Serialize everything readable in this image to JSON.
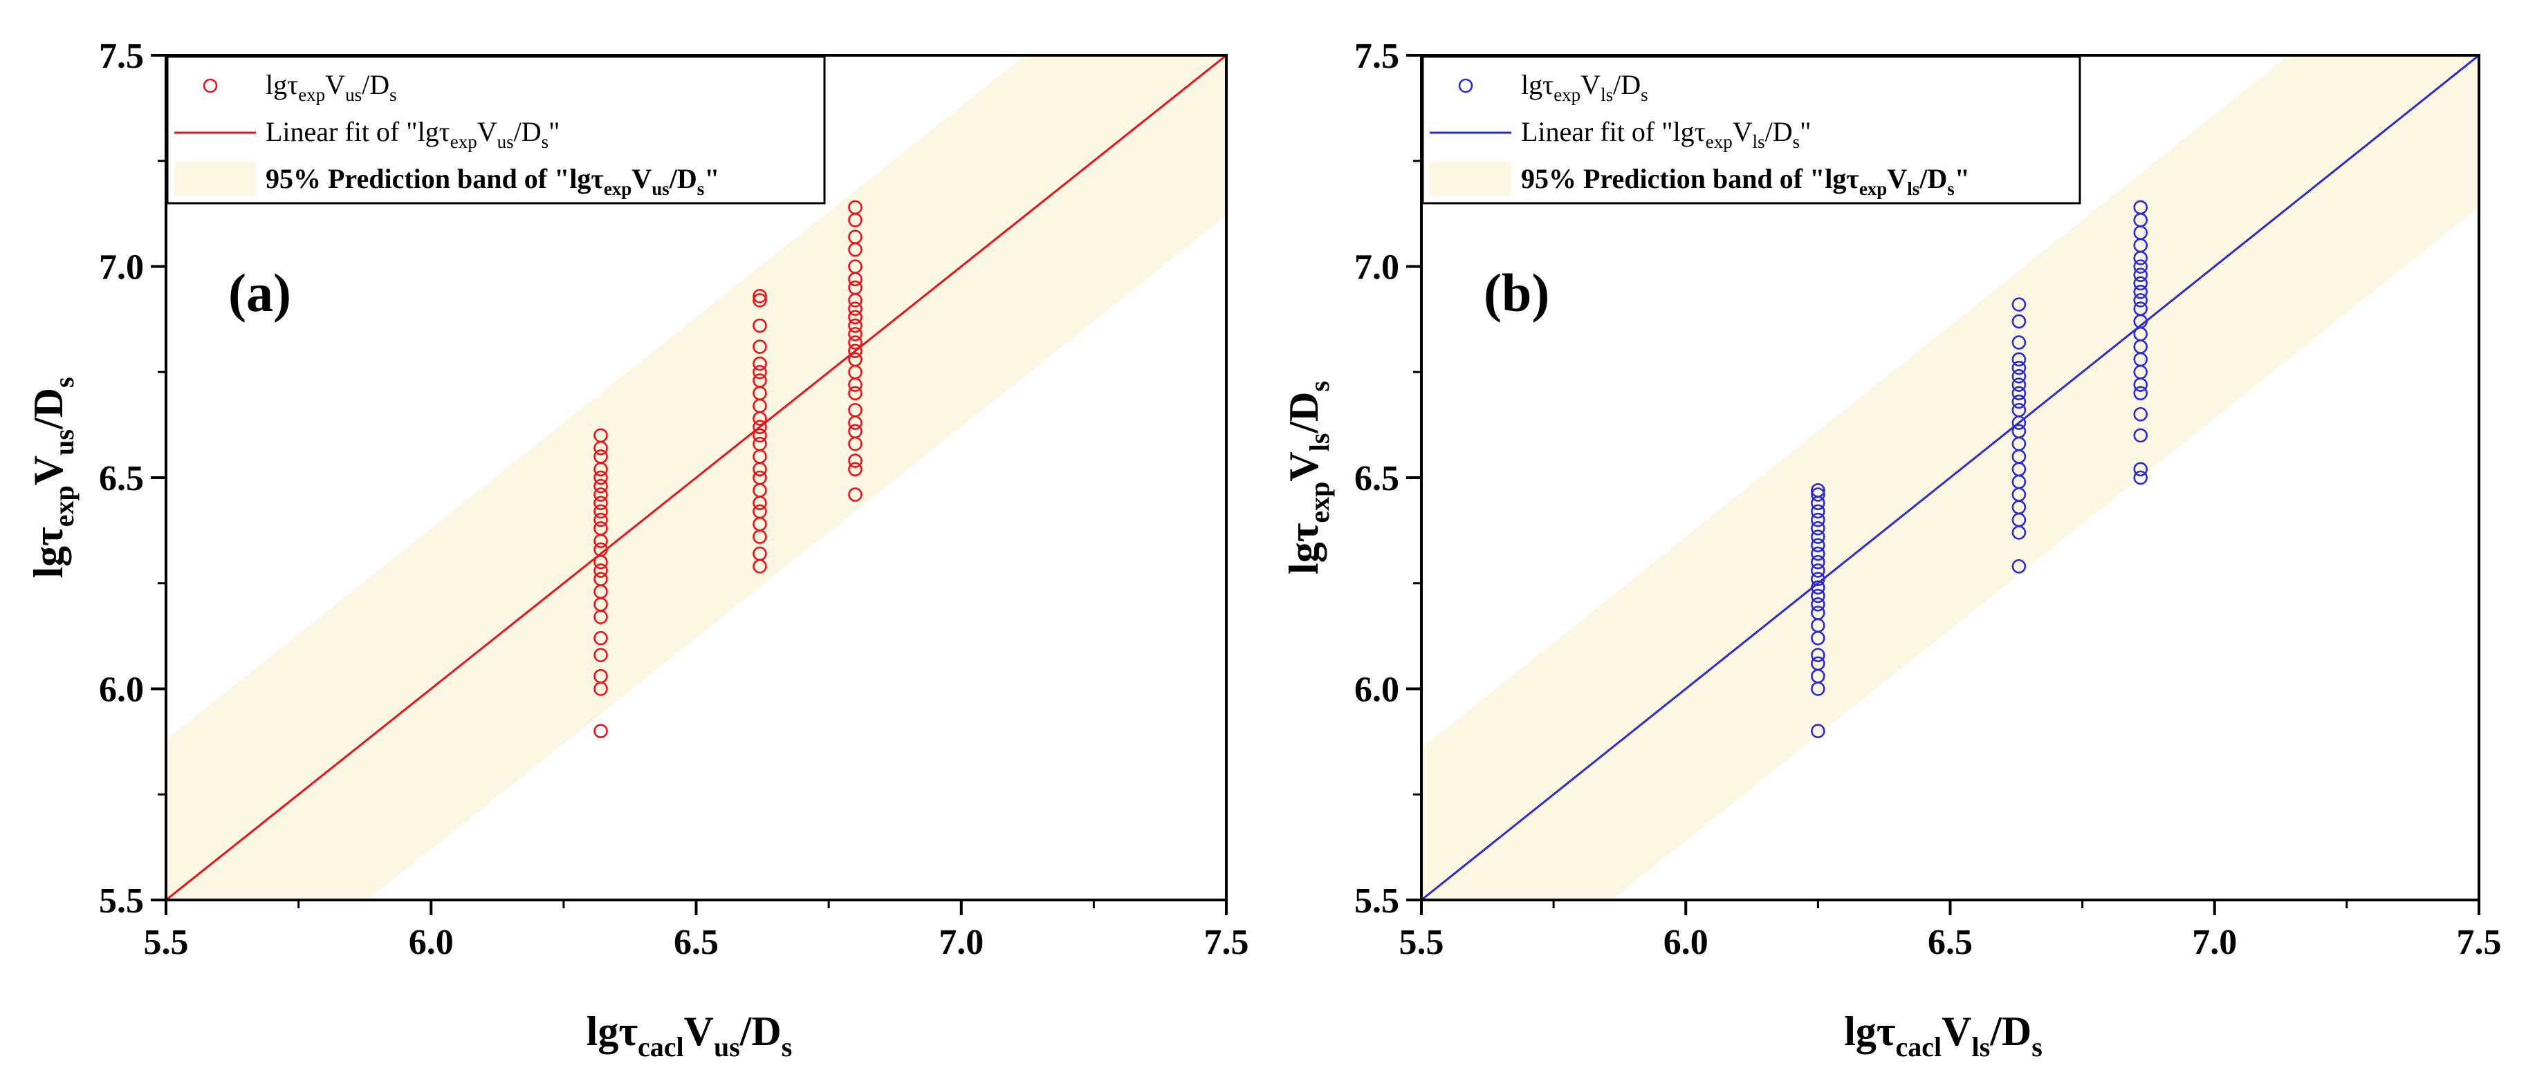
{
  "chart_data": [
    {
      "type": "scatter",
      "panel_label": "(a)",
      "color": "#e8131b",
      "band_color": "#fbf7e2",
      "xlim": [
        5.5,
        7.5
      ],
      "ylim": [
        5.5,
        7.5
      ],
      "x_ticks": [
        "5.5",
        "6.0",
        "6.5",
        "7.0",
        "7.5"
      ],
      "y_ticks": [
        "5.5",
        "6.0",
        "6.5",
        "7.0",
        "7.5"
      ],
      "xlabel": {
        "base": "lgτ",
        "sub1": "cacl",
        "mid": "V",
        "sub2": "us",
        "tail": "/D",
        "sub3": "s"
      },
      "ylabel": {
        "base": "lgτ",
        "sub1": "exp",
        "mid": "V",
        "sub2": "us",
        "tail": "/D",
        "sub3": "s"
      },
      "legend": {
        "scatter": {
          "base": "lgτ",
          "sub1": "exp",
          "mid": "V",
          "sub2": "us",
          "tail": "/D",
          "sub3": "s"
        },
        "fit": {
          "base": "Linear fit of \"lgτ",
          "sub1": "exp",
          "mid": "V",
          "sub2": "us",
          "tail": "/D",
          "sub3": "s",
          "end": "\""
        },
        "band": {
          "base": "95% Prediction band of \"lgτ",
          "sub1": "exp",
          "mid": "V",
          "sub2": "us",
          "tail": "/D",
          "sub3": "s",
          "end": "\""
        }
      },
      "fit_line": [
        [
          5.5,
          5.5
        ],
        [
          7.5,
          7.5
        ]
      ],
      "band_halfwidth": 0.38,
      "series": [
        {
          "x": 6.32,
          "y": [
            5.9,
            6.0,
            6.03,
            6.08,
            6.12,
            6.17,
            6.2,
            6.23,
            6.26,
            6.28,
            6.3,
            6.33,
            6.35,
            6.38,
            6.4,
            6.42,
            6.44,
            6.46,
            6.48,
            6.5,
            6.52,
            6.55,
            6.57,
            6.6
          ]
        },
        {
          "x": 6.62,
          "y": [
            6.29,
            6.32,
            6.36,
            6.39,
            6.42,
            6.44,
            6.47,
            6.5,
            6.52,
            6.55,
            6.58,
            6.6,
            6.62,
            6.64,
            6.67,
            6.7,
            6.73,
            6.75,
            6.77,
            6.81,
            6.86,
            6.92,
            6.93
          ]
        },
        {
          "x": 6.8,
          "y": [
            6.46,
            6.52,
            6.54,
            6.58,
            6.61,
            6.63,
            6.66,
            6.7,
            6.72,
            6.75,
            6.78,
            6.8,
            6.82,
            6.84,
            6.86,
            6.88,
            6.9,
            6.92,
            6.95,
            6.97,
            7.0,
            7.04,
            7.07,
            7.11,
            7.14
          ]
        }
      ]
    },
    {
      "type": "scatter",
      "panel_label": "(b)",
      "color": "#2b2bd6",
      "band_color": "#fbf7e2",
      "xlim": [
        5.5,
        7.5
      ],
      "ylim": [
        5.5,
        7.5
      ],
      "x_ticks": [
        "5.5",
        "6.0",
        "6.5",
        "7.0",
        "7.5"
      ],
      "y_ticks": [
        "5.5",
        "6.0",
        "6.5",
        "7.0",
        "7.5"
      ],
      "xlabel": {
        "base": "lgτ",
        "sub1": "cacl",
        "mid": "V",
        "sub2": "ls",
        "tail": "/D",
        "sub3": "s"
      },
      "ylabel": {
        "base": "lgτ",
        "sub1": "exp",
        "mid": "V",
        "sub2": "ls",
        "tail": "/D",
        "sub3": "s"
      },
      "legend": {
        "scatter": {
          "base": "lgτ",
          "sub1": "exp",
          "mid": "V",
          "sub2": "ls",
          "tail": "/D",
          "sub3": "s"
        },
        "fit": {
          "base": "Linear fit of \"lgτ",
          "sub1": "exp",
          "mid": "V",
          "sub2": "ls",
          "tail": "/D",
          "sub3": "s",
          "end": "\""
        },
        "band": {
          "base": "95% Prediction band of \"lgτ",
          "sub1": "exp",
          "mid": "V",
          "sub2": "ls",
          "tail": "/D",
          "sub3": "s",
          "end": "\""
        }
      },
      "fit_line": [
        [
          5.5,
          5.5
        ],
        [
          7.5,
          7.5
        ]
      ],
      "band_halfwidth": 0.36,
      "series": [
        {
          "x": 6.25,
          "y": [
            5.9,
            6.0,
            6.03,
            6.06,
            6.08,
            6.12,
            6.15,
            6.18,
            6.2,
            6.22,
            6.24,
            6.26,
            6.28,
            6.3,
            6.32,
            6.34,
            6.36,
            6.38,
            6.4,
            6.42,
            6.44,
            6.46,
            6.47
          ]
        },
        {
          "x": 6.63,
          "y": [
            6.29,
            6.37,
            6.4,
            6.43,
            6.46,
            6.49,
            6.52,
            6.55,
            6.58,
            6.61,
            6.63,
            6.66,
            6.68,
            6.7,
            6.72,
            6.74,
            6.76,
            6.78,
            6.82,
            6.87,
            6.91
          ]
        },
        {
          "x": 6.86,
          "y": [
            6.5,
            6.52,
            6.6,
            6.65,
            6.7,
            6.72,
            6.75,
            6.78,
            6.81,
            6.84,
            6.87,
            6.9,
            6.92,
            6.94,
            6.96,
            6.98,
            7.0,
            7.02,
            7.05,
            7.08,
            7.11,
            7.14
          ]
        }
      ]
    }
  ]
}
